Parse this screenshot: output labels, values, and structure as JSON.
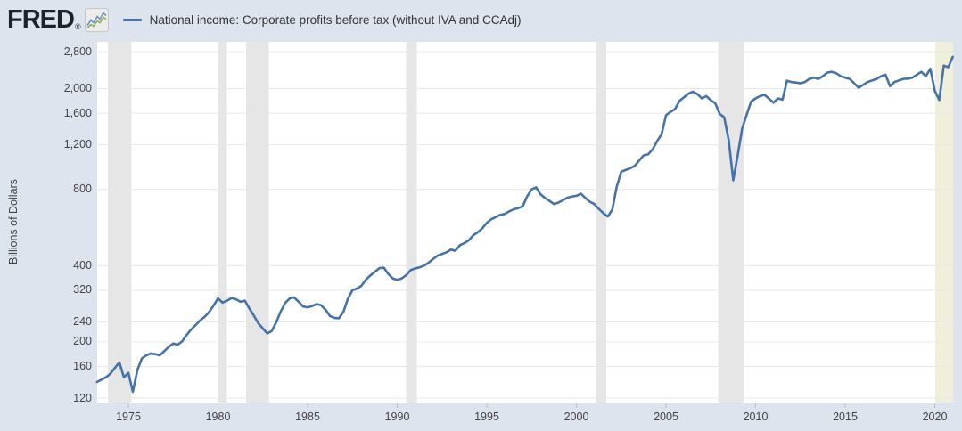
{
  "header": {
    "logo_text": "FRED",
    "logo_reg": "®"
  },
  "colors": {
    "outer_background": "#dde4ed",
    "plot_background": "#ffffff",
    "line": "#4573a9",
    "gridline": "#e8e8e8",
    "recession_band": "#e6e6e6",
    "recent_band": "#f0f0da",
    "axis": "#b9c3cf",
    "tick_text": "#444444",
    "legend_text": "#333333"
  },
  "chart_data": {
    "type": "line",
    "title": "National income: Corporate profits before tax (without IVA and CCAdj)",
    "ylabel": "Billions of Dollars",
    "xlabel": "",
    "y_scale": "log",
    "grid": true,
    "legend_position": "top-left",
    "xlim": [
      1973.2,
      2021.05
    ],
    "ylim": [
      112,
      3050
    ],
    "y_ticks": [
      {
        "v": 2800,
        "label": "2,800"
      },
      {
        "v": 2000,
        "label": "2,000"
      },
      {
        "v": 1600,
        "label": "1,600"
      },
      {
        "v": 1200,
        "label": "1,200"
      },
      {
        "v": 800,
        "label": "800"
      },
      {
        "v": 400,
        "label": "400"
      },
      {
        "v": 320,
        "label": "320"
      },
      {
        "v": 240,
        "label": "240"
      },
      {
        "v": 200,
        "label": "200"
      },
      {
        "v": 160,
        "label": "160"
      },
      {
        "v": 120,
        "label": "120"
      }
    ],
    "x_ticks": [
      {
        "v": 1975,
        "label": "1975"
      },
      {
        "v": 1980,
        "label": "1980"
      },
      {
        "v": 1985,
        "label": "1985"
      },
      {
        "v": 1990,
        "label": "1990"
      },
      {
        "v": 1995,
        "label": "1995"
      },
      {
        "v": 2000,
        "label": "2000"
      },
      {
        "v": 2005,
        "label": "2005"
      },
      {
        "v": 2010,
        "label": "2010"
      },
      {
        "v": 2015,
        "label": "2015"
      },
      {
        "v": 2020,
        "label": "2020"
      }
    ],
    "recession_bands": {
      "color": "#e6e6e6",
      "periods": [
        [
          1973.86,
          1975.17
        ],
        [
          1980.0,
          1980.5
        ],
        [
          1981.57,
          1982.84
        ],
        [
          1990.5,
          1991.1
        ],
        [
          2001.1,
          2001.67
        ],
        [
          2007.91,
          2009.35
        ]
      ]
    },
    "recent_band": {
      "color": "#f0f0da",
      "start": 2020.02
    },
    "series": [
      {
        "name": "National income: Corporate profits before tax (without IVA and CCAdj)",
        "color": "#4573a9",
        "units": "Billions of Dollars",
        "frequency": "quarterly",
        "points": [
          [
            1973.25,
            139
          ],
          [
            1973.5,
            142
          ],
          [
            1973.75,
            145
          ],
          [
            1974,
            150
          ],
          [
            1974.25,
            158
          ],
          [
            1974.5,
            166
          ],
          [
            1974.75,
            145
          ],
          [
            1975,
            151
          ],
          [
            1975.25,
            127
          ],
          [
            1975.5,
            155
          ],
          [
            1975.75,
            172
          ],
          [
            1976,
            177
          ],
          [
            1976.25,
            180
          ],
          [
            1976.5,
            179
          ],
          [
            1976.75,
            177
          ],
          [
            1977,
            184
          ],
          [
            1977.25,
            191
          ],
          [
            1977.5,
            197
          ],
          [
            1977.75,
            195
          ],
          [
            1978,
            201
          ],
          [
            1978.25,
            213
          ],
          [
            1978.5,
            224
          ],
          [
            1978.75,
            233
          ],
          [
            1979,
            243
          ],
          [
            1979.25,
            251
          ],
          [
            1979.5,
            262
          ],
          [
            1979.75,
            278
          ],
          [
            1980,
            297
          ],
          [
            1980.25,
            286
          ],
          [
            1980.5,
            291
          ],
          [
            1980.75,
            298
          ],
          [
            1981,
            295
          ],
          [
            1981.25,
            288
          ],
          [
            1981.5,
            291
          ],
          [
            1981.75,
            271
          ],
          [
            1982,
            254
          ],
          [
            1982.25,
            237
          ],
          [
            1982.5,
            226
          ],
          [
            1982.75,
            216
          ],
          [
            1983,
            221
          ],
          [
            1983.25,
            239
          ],
          [
            1983.5,
            264
          ],
          [
            1983.75,
            285
          ],
          [
            1984,
            297
          ],
          [
            1984.25,
            300
          ],
          [
            1984.5,
            288
          ],
          [
            1984.75,
            276
          ],
          [
            1985,
            274
          ],
          [
            1985.25,
            277
          ],
          [
            1985.5,
            282
          ],
          [
            1985.75,
            279
          ],
          [
            1986,
            268
          ],
          [
            1986.25,
            253
          ],
          [
            1986.5,
            249
          ],
          [
            1986.75,
            248
          ],
          [
            1987,
            263
          ],
          [
            1987.25,
            296
          ],
          [
            1987.5,
            320
          ],
          [
            1987.75,
            325
          ],
          [
            1988,
            333
          ],
          [
            1988.25,
            352
          ],
          [
            1988.5,
            366
          ],
          [
            1988.75,
            378
          ],
          [
            1989,
            391
          ],
          [
            1989.25,
            393
          ],
          [
            1989.5,
            371
          ],
          [
            1989.75,
            356
          ],
          [
            1990,
            352
          ],
          [
            1990.25,
            356
          ],
          [
            1990.5,
            367
          ],
          [
            1990.75,
            384
          ],
          [
            1991,
            390
          ],
          [
            1991.25,
            394
          ],
          [
            1991.5,
            400
          ],
          [
            1991.75,
            411
          ],
          [
            1992,
            425
          ],
          [
            1992.25,
            438
          ],
          [
            1992.5,
            445
          ],
          [
            1992.75,
            452
          ],
          [
            1993,
            463
          ],
          [
            1993.25,
            458
          ],
          [
            1993.5,
            482
          ],
          [
            1993.75,
            491
          ],
          [
            1994,
            504
          ],
          [
            1994.25,
            528
          ],
          [
            1994.5,
            542
          ],
          [
            1994.75,
            562
          ],
          [
            1995,
            590
          ],
          [
            1995.25,
            610
          ],
          [
            1995.5,
            622
          ],
          [
            1995.75,
            635
          ],
          [
            1996,
            640
          ],
          [
            1996.25,
            655
          ],
          [
            1996.5,
            668
          ],
          [
            1996.75,
            675
          ],
          [
            1997,
            685
          ],
          [
            1997.25,
            750
          ],
          [
            1997.5,
            800
          ],
          [
            1997.75,
            815
          ],
          [
            1998,
            765
          ],
          [
            1998.25,
            740
          ],
          [
            1998.5,
            720
          ],
          [
            1998.75,
            700
          ],
          [
            1999,
            710
          ],
          [
            1999.25,
            725
          ],
          [
            1999.5,
            742
          ],
          [
            1999.75,
            750
          ],
          [
            2000,
            755
          ],
          [
            2000.25,
            770
          ],
          [
            2000.5,
            740
          ],
          [
            2000.75,
            715
          ],
          [
            2001,
            700
          ],
          [
            2001.25,
            670
          ],
          [
            2001.5,
            645
          ],
          [
            2001.75,
            625
          ],
          [
            2002,
            665
          ],
          [
            2002.25,
            820
          ],
          [
            2002.5,
            940
          ],
          [
            2002.75,
            955
          ],
          [
            2003,
            970
          ],
          [
            2003.25,
            990
          ],
          [
            2003.5,
            1040
          ],
          [
            2003.75,
            1090
          ],
          [
            2004,
            1100
          ],
          [
            2004.25,
            1150
          ],
          [
            2004.5,
            1240
          ],
          [
            2004.75,
            1320
          ],
          [
            2005,
            1570
          ],
          [
            2005.25,
            1620
          ],
          [
            2005.5,
            1660
          ],
          [
            2005.75,
            1790
          ],
          [
            2006,
            1850
          ],
          [
            2006.25,
            1910
          ],
          [
            2006.5,
            1945
          ],
          [
            2006.75,
            1905
          ],
          [
            2007,
            1830
          ],
          [
            2007.25,
            1870
          ],
          [
            2007.5,
            1800
          ],
          [
            2007.75,
            1750
          ],
          [
            2008,
            1590
          ],
          [
            2008.25,
            1540
          ],
          [
            2008.5,
            1250
          ],
          [
            2008.75,
            870
          ],
          [
            2009,
            1090
          ],
          [
            2009.25,
            1390
          ],
          [
            2009.5,
            1580
          ],
          [
            2009.75,
            1780
          ],
          [
            2010,
            1830
          ],
          [
            2010.25,
            1870
          ],
          [
            2010.5,
            1890
          ],
          [
            2010.75,
            1825
          ],
          [
            2011,
            1760
          ],
          [
            2011.25,
            1830
          ],
          [
            2011.5,
            1810
          ],
          [
            2011.75,
            2150
          ],
          [
            2012,
            2125
          ],
          [
            2012.25,
            2115
          ],
          [
            2012.5,
            2100
          ],
          [
            2012.75,
            2125
          ],
          [
            2013,
            2185
          ],
          [
            2013.25,
            2210
          ],
          [
            2013.5,
            2185
          ],
          [
            2013.75,
            2240
          ],
          [
            2014,
            2315
          ],
          [
            2014.25,
            2330
          ],
          [
            2014.5,
            2300
          ],
          [
            2014.75,
            2240
          ],
          [
            2015,
            2210
          ],
          [
            2015.25,
            2185
          ],
          [
            2015.5,
            2100
          ],
          [
            2015.75,
            2015
          ],
          [
            2016,
            2070
          ],
          [
            2016.25,
            2125
          ],
          [
            2016.5,
            2155
          ],
          [
            2016.75,
            2185
          ],
          [
            2017,
            2240
          ],
          [
            2017.25,
            2270
          ],
          [
            2017.5,
            2045
          ],
          [
            2017.75,
            2125
          ],
          [
            2018,
            2155
          ],
          [
            2018.25,
            2185
          ],
          [
            2018.5,
            2190
          ],
          [
            2018.75,
            2210
          ],
          [
            2019,
            2270
          ],
          [
            2019.25,
            2330
          ],
          [
            2019.5,
            2240
          ],
          [
            2019.75,
            2395
          ],
          [
            2020,
            1960
          ],
          [
            2020.25,
            1804
          ],
          [
            2020.5,
            2465
          ],
          [
            2020.75,
            2430
          ],
          [
            2021,
            2670
          ]
        ]
      }
    ]
  }
}
